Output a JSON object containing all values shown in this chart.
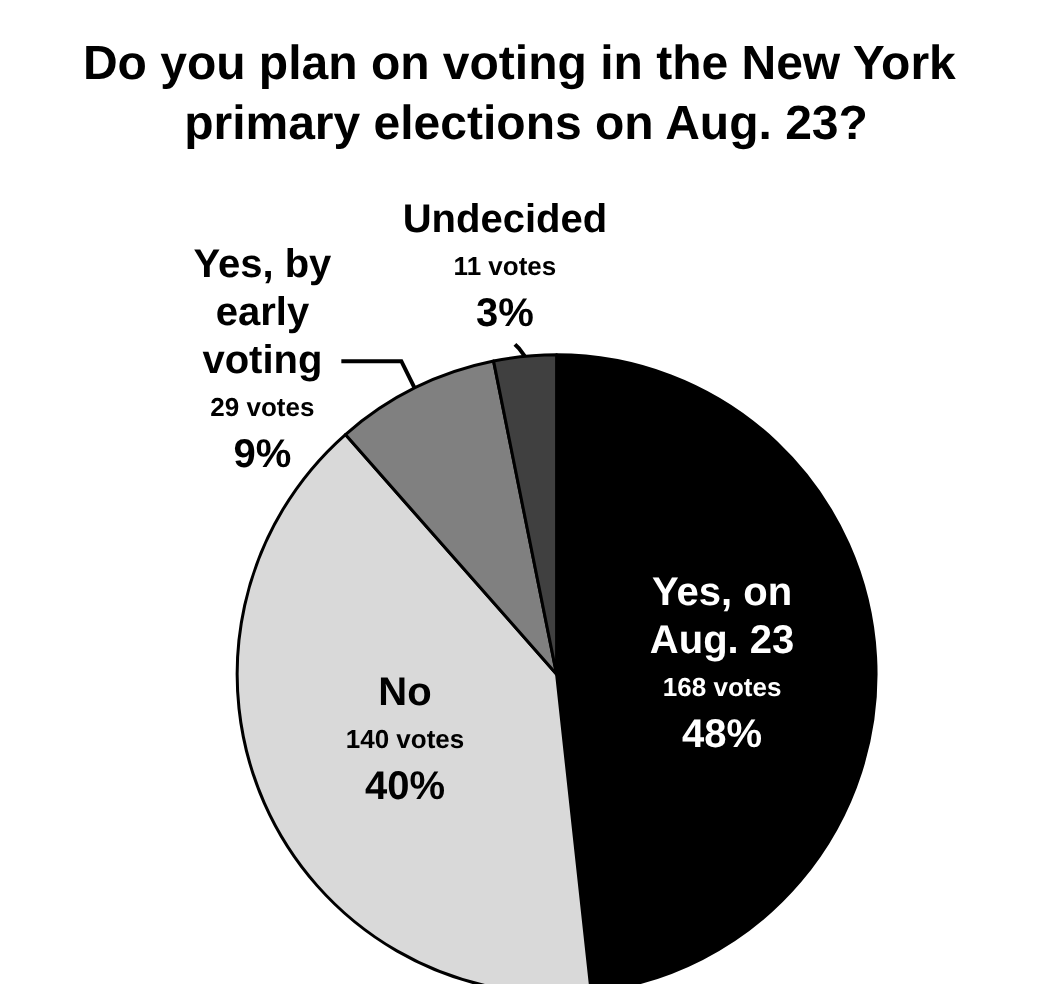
{
  "chart_data": {
    "type": "pie",
    "title": "Do you plan on voting in the New York primary elections on Aug. 23?",
    "categories": [
      "Yes, on Aug. 23",
      "No",
      "Yes, by early voting",
      "Undecided"
    ],
    "values": [
      168,
      140,
      29,
      11
    ],
    "value_labels": [
      "168 votes\n48%",
      "140 votes\n40%",
      "29 votes\n9%",
      "11 votes\n3%"
    ],
    "colors": [
      "#000000",
      "#d9d9d9",
      "#808080",
      "#404040"
    ],
    "legend": false
  }
}
